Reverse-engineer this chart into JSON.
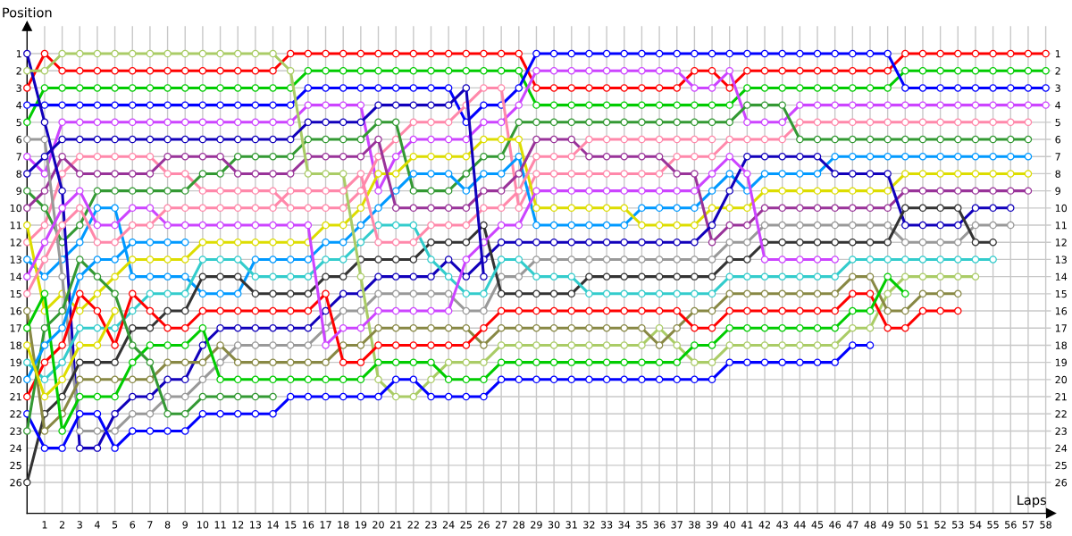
{
  "chart_data": {
    "type": "line",
    "xlabel": "Laps",
    "ylabel": "Position",
    "grid": true,
    "marker": "circle",
    "line_style": "solid",
    "x": [
      0,
      1,
      2,
      3,
      4,
      5,
      6,
      7,
      8,
      9,
      10,
      11,
      12,
      13,
      14,
      15,
      16,
      17,
      18,
      19,
      20,
      21,
      22,
      23,
      24,
      25,
      26,
      27,
      28,
      29,
      30,
      31,
      32,
      33,
      34,
      35,
      36,
      37,
      38,
      39,
      40,
      41,
      42,
      43,
      44,
      45,
      46,
      47,
      48,
      49,
      50,
      51,
      52,
      53,
      54,
      55,
      56,
      57,
      58
    ],
    "xlim": [
      0,
      58.3
    ],
    "xticks": [
      1,
      2,
      3,
      4,
      5,
      6,
      7,
      8,
      9,
      10,
      11,
      12,
      13,
      14,
      15,
      16,
      17,
      18,
      19,
      20,
      21,
      22,
      23,
      24,
      25,
      26,
      27,
      28,
      29,
      30,
      31,
      32,
      33,
      34,
      35,
      36,
      37,
      38,
      39,
      40,
      41,
      42,
      43,
      44,
      45,
      46,
      47,
      48,
      49,
      50,
      51,
      52,
      53,
      54,
      55,
      56,
      57,
      58
    ],
    "ylim": [
      27.8,
      -0.6
    ],
    "yticks": [
      1,
      2,
      3,
      4,
      5,
      6,
      7,
      8,
      9,
      10,
      11,
      12,
      13,
      14,
      15,
      16,
      17,
      18,
      19,
      20,
      21,
      22,
      23,
      24,
      25,
      26
    ],
    "y2lim": [
      27.8,
      -0.6
    ],
    "y2ticks": [
      1,
      2,
      3,
      4,
      5,
      6,
      7,
      8,
      9,
      10,
      11,
      12,
      13,
      14,
      15,
      16,
      17,
      18,
      19,
      20,
      21,
      22,
      23,
      24,
      25,
      26
    ],
    "series": [
      {
        "color": "#ff0000",
        "values": [
          3,
          1,
          2,
          2,
          2,
          2,
          2,
          2,
          2,
          2,
          2,
          2,
          2,
          2,
          2,
          1,
          1,
          1,
          1,
          1,
          1,
          1,
          1,
          1,
          1,
          1,
          1,
          1,
          1,
          3,
          3,
          3,
          3,
          3,
          3,
          3,
          3,
          3,
          2,
          2,
          3,
          2,
          2,
          2,
          2,
          2,
          2,
          2,
          2,
          2,
          1,
          1,
          1,
          1,
          1,
          1,
          1,
          1,
          1
        ]
      },
      {
        "color": "#00cc00",
        "values": [
          5,
          3,
          3,
          3,
          3,
          3,
          3,
          3,
          3,
          3,
          3,
          3,
          3,
          3,
          3,
          3,
          2,
          2,
          2,
          2,
          2,
          2,
          2,
          2,
          2,
          2,
          2,
          2,
          2,
          4,
          4,
          4,
          4,
          4,
          4,
          4,
          4,
          4,
          4,
          4,
          4,
          3,
          3,
          3,
          3,
          3,
          3,
          3,
          3,
          3,
          2,
          2,
          2,
          2,
          2,
          2,
          2,
          2,
          2
        ]
      },
      {
        "color": "#0000ff",
        "values": [
          4,
          4,
          4,
          4,
          4,
          4,
          4,
          4,
          4,
          4,
          4,
          4,
          4,
          4,
          4,
          4,
          3,
          3,
          3,
          3,
          3,
          3,
          3,
          3,
          3,
          5,
          4,
          4,
          3,
          1,
          1,
          1,
          1,
          1,
          1,
          1,
          1,
          1,
          1,
          1,
          1,
          1,
          1,
          1,
          1,
          1,
          1,
          1,
          1,
          1,
          3,
          3,
          3,
          3,
          3,
          3,
          3,
          3,
          3
        ]
      },
      {
        "color": "#cc44ff",
        "values": [
          7,
          8,
          5,
          5,
          5,
          5,
          5,
          5,
          5,
          5,
          5,
          5,
          5,
          5,
          5,
          5,
          4,
          4,
          4,
          4,
          9,
          7,
          6,
          6,
          6,
          6,
          5,
          5,
          4,
          2,
          2,
          2,
          2,
          2,
          2,
          2,
          2,
          2,
          3,
          3,
          2,
          5,
          5,
          5,
          4,
          4,
          4,
          4,
          4,
          4,
          4,
          4,
          4,
          4,
          4,
          4,
          4,
          4,
          4
        ]
      },
      {
        "color": "#ff88aa",
        "values": [
          12,
          11,
          8,
          7,
          7,
          7,
          7,
          7,
          8,
          8,
          9,
          9,
          9,
          9,
          9,
          10,
          10,
          10,
          10,
          9,
          7,
          6,
          5,
          5,
          5,
          4,
          3,
          3,
          10,
          8,
          8,
          8,
          8,
          8,
          8,
          8,
          8,
          7,
          7,
          7,
          6,
          6,
          6,
          6,
          5,
          5,
          5,
          5,
          5,
          5,
          5,
          5,
          5,
          5,
          5,
          5,
          5,
          5,
          null
        ]
      },
      {
        "color": "#339933",
        "values": [
          9,
          10,
          12,
          11,
          9,
          9,
          9,
          9,
          9,
          9,
          8,
          8,
          7,
          7,
          7,
          7,
          6,
          6,
          6,
          6,
          5,
          5,
          9,
          9,
          9,
          8,
          7,
          7,
          5,
          5,
          5,
          5,
          5,
          5,
          5,
          5,
          5,
          5,
          5,
          5,
          5,
          4,
          4,
          4,
          6,
          6,
          6,
          6,
          6,
          6,
          6,
          6,
          6,
          6,
          6,
          6,
          6,
          6,
          null
        ]
      },
      {
        "color": "#0099ff",
        "values": [
          13,
          14,
          13,
          12,
          10,
          10,
          14,
          14,
          14,
          14,
          15,
          15,
          15,
          13,
          13,
          13,
          13,
          12,
          12,
          11,
          10,
          9,
          8,
          8,
          8,
          9,
          8,
          8,
          7,
          11,
          11,
          11,
          11,
          11,
          11,
          10,
          10,
          10,
          10,
          9,
          8,
          9,
          8,
          8,
          8,
          8,
          7,
          7,
          7,
          7,
          7,
          7,
          7,
          7,
          7,
          7,
          7,
          7,
          null
        ]
      },
      {
        "color": "#dddd00",
        "values": [
          11,
          16,
          15,
          16,
          15,
          14,
          13,
          13,
          13,
          13,
          12,
          12,
          12,
          12,
          12,
          12,
          12,
          11,
          11,
          10,
          8,
          8,
          7,
          7,
          7,
          7,
          6,
          6,
          6,
          10,
          10,
          10,
          10,
          10,
          10,
          11,
          11,
          11,
          11,
          10,
          10,
          10,
          9,
          9,
          9,
          9,
          9,
          9,
          9,
          9,
          8,
          8,
          8,
          8,
          8,
          8,
          8,
          8,
          null
        ]
      },
      {
        "color": "#993399",
        "values": [
          10,
          9,
          7,
          8,
          8,
          8,
          8,
          8,
          7,
          7,
          7,
          7,
          8,
          8,
          8,
          8,
          7,
          7,
          7,
          7,
          6,
          10,
          10,
          10,
          10,
          10,
          9,
          9,
          8,
          6,
          6,
          6,
          7,
          7,
          7,
          7,
          7,
          8,
          8,
          12,
          11,
          11,
          10,
          10,
          10,
          10,
          10,
          10,
          10,
          10,
          9,
          9,
          9,
          9,
          9,
          9,
          9,
          9,
          null
        ]
      },
      {
        "color": "#1100bb",
        "values": [
          1,
          5,
          9,
          24,
          24,
          22,
          21,
          21,
          20,
          20,
          18,
          17,
          17,
          17,
          17,
          17,
          17,
          16,
          15,
          15,
          14,
          14,
          14,
          14,
          13,
          14,
          13,
          12,
          12,
          12,
          12,
          12,
          12,
          12,
          12,
          12,
          12,
          12,
          12,
          11,
          9,
          7,
          7,
          7,
          7,
          7,
          8,
          8,
          8,
          8,
          11,
          11,
          11,
          11,
          10,
          10,
          10,
          null,
          null
        ]
      },
      {
        "color": "#999999",
        "values": [
          6,
          6,
          14,
          23,
          23,
          23,
          22,
          22,
          21,
          21,
          20,
          19,
          18,
          18,
          18,
          18,
          18,
          17,
          16,
          16,
          15,
          15,
          15,
          15,
          15,
          16,
          16,
          14,
          14,
          13,
          13,
          13,
          13,
          13,
          13,
          13,
          13,
          13,
          13,
          13,
          12,
          12,
          11,
          11,
          11,
          11,
          11,
          11,
          11,
          11,
          12,
          12,
          12,
          12,
          11,
          11,
          11,
          null,
          null
        ]
      },
      {
        "color": "#333333",
        "values": [
          26,
          22,
          21,
          19,
          19,
          19,
          17,
          17,
          16,
          16,
          14,
          14,
          14,
          15,
          15,
          15,
          15,
          14,
          14,
          13,
          13,
          13,
          13,
          12,
          12,
          12,
          11,
          15,
          15,
          15,
          15,
          15,
          14,
          14,
          14,
          14,
          14,
          14,
          14,
          14,
          13,
          13,
          12,
          12,
          12,
          12,
          12,
          12,
          12,
          12,
          10,
          10,
          10,
          10,
          12,
          12,
          null,
          null,
          null
        ]
      },
      {
        "color": "#33cccc",
        "values": [
          19,
          20,
          19,
          17,
          17,
          17,
          16,
          15,
          15,
          15,
          13,
          13,
          13,
          14,
          14,
          14,
          14,
          13,
          13,
          12,
          11,
          11,
          11,
          13,
          14,
          15,
          15,
          13,
          13,
          14,
          14,
          14,
          15,
          15,
          15,
          15,
          15,
          15,
          15,
          15,
          14,
          14,
          14,
          14,
          14,
          14,
          14,
          13,
          13,
          13,
          13,
          13,
          13,
          13,
          13,
          13,
          null,
          null,
          null
        ]
      },
      {
        "color": "#aacc66",
        "values": [
          2,
          2,
          1,
          1,
          1,
          1,
          1,
          1,
          1,
          1,
          1,
          1,
          1,
          1,
          1,
          2,
          8,
          8,
          8,
          14,
          20,
          21,
          21,
          20,
          19,
          19,
          19,
          18,
          18,
          18,
          18,
          18,
          18,
          18,
          18,
          18,
          17,
          18,
          19,
          19,
          18,
          18,
          18,
          18,
          18,
          18,
          18,
          17,
          17,
          15,
          14,
          14,
          14,
          14,
          14,
          null,
          null,
          null,
          null
        ]
      },
      {
        "color": "#888844",
        "values": [
          16,
          23,
          22,
          20,
          20,
          20,
          20,
          20,
          19,
          19,
          19,
          18,
          19,
          19,
          19,
          19,
          19,
          19,
          18,
          18,
          17,
          17,
          17,
          17,
          17,
          17,
          18,
          17,
          17,
          17,
          17,
          17,
          17,
          17,
          17,
          17,
          18,
          17,
          16,
          16,
          15,
          15,
          15,
          15,
          15,
          15,
          15,
          14,
          14,
          16,
          16,
          15,
          15,
          15,
          null,
          null,
          null,
          null,
          null
        ]
      },
      {
        "color": "#ff0000",
        "values": [
          21,
          19,
          18,
          15,
          16,
          18,
          15,
          16,
          17,
          17,
          16,
          16,
          16,
          16,
          16,
          16,
          16,
          15,
          19,
          19,
          18,
          18,
          18,
          18,
          18,
          18,
          17,
          16,
          16,
          16,
          16,
          16,
          16,
          16,
          16,
          16,
          16,
          16,
          17,
          17,
          16,
          16,
          16,
          16,
          16,
          16,
          16,
          15,
          15,
          17,
          17,
          16,
          16,
          16,
          null,
          null,
          null,
          null,
          null
        ]
      },
      {
        "color": "#00cc00",
        "values": [
          17,
          15,
          23,
          21,
          21,
          21,
          19,
          18,
          18,
          18,
          17,
          20,
          20,
          20,
          20,
          20,
          20,
          20,
          20,
          20,
          19,
          19,
          19,
          19,
          20,
          20,
          20,
          19,
          19,
          19,
          19,
          19,
          19,
          19,
          19,
          19,
          19,
          19,
          18,
          18,
          17,
          17,
          17,
          17,
          17,
          17,
          17,
          16,
          16,
          14,
          15,
          null,
          null,
          null,
          null,
          null,
          null,
          null,
          null
        ]
      },
      {
        "color": "#0000ff",
        "values": [
          22,
          24,
          24,
          22,
          22,
          24,
          23,
          23,
          23,
          23,
          22,
          22,
          22,
          22,
          22,
          21,
          21,
          21,
          21,
          21,
          21,
          20,
          20,
          21,
          21,
          21,
          21,
          20,
          20,
          20,
          20,
          20,
          20,
          20,
          20,
          20,
          20,
          20,
          20,
          20,
          19,
          19,
          19,
          19,
          19,
          19,
          19,
          18,
          18,
          null,
          null,
          null,
          null,
          null,
          null,
          null,
          null,
          null,
          null
        ]
      },
      {
        "color": "#cc44ff",
        "values": [
          14,
          12,
          10,
          9,
          11,
          11,
          10,
          10,
          11,
          11,
          11,
          11,
          11,
          11,
          11,
          11,
          11,
          18,
          17,
          17,
          16,
          16,
          16,
          16,
          16,
          13,
          12,
          11,
          11,
          9,
          9,
          9,
          9,
          9,
          9,
          9,
          9,
          9,
          9,
          8,
          7,
          8,
          13,
          13,
          13,
          13,
          13,
          null,
          null,
          null,
          null,
          null,
          null,
          null,
          null,
          null,
          null,
          null,
          null
        ]
      },
      {
        "color": "#ff88aa",
        "values": [
          15,
          13,
          11,
          10,
          12,
          12,
          11,
          11,
          10,
          10,
          10,
          10,
          10,
          10,
          10,
          9,
          9,
          9,
          9,
          8,
          12,
          12,
          12,
          11,
          11,
          11,
          10,
          10,
          9,
          7,
          7,
          7,
          6,
          6,
          6,
          6,
          6,
          6,
          6,
          6,
          null,
          null,
          null,
          null,
          null,
          null,
          null,
          null,
          null,
          null,
          null,
          null,
          null,
          null,
          null,
          null,
          null,
          null,
          null
        ]
      },
      {
        "color": "#1100bb",
        "values": [
          8,
          7,
          6,
          6,
          6,
          6,
          6,
          6,
          6,
          6,
          6,
          6,
          6,
          6,
          6,
          6,
          5,
          5,
          5,
          5,
          4,
          4,
          4,
          4,
          4,
          3,
          14,
          null,
          null,
          null,
          null,
          null,
          null,
          null,
          null,
          null,
          null,
          null,
          null,
          null,
          null,
          null,
          null,
          null,
          null,
          null,
          null,
          null,
          null,
          null,
          null,
          null,
          null,
          null,
          null,
          null,
          null,
          null,
          null
        ]
      },
      {
        "color": "#339933",
        "values": [
          23,
          17,
          16,
          13,
          14,
          15,
          18,
          19,
          22,
          22,
          21,
          21,
          21,
          21,
          21,
          null,
          null,
          null,
          null,
          null,
          null,
          null,
          null,
          null,
          null,
          null,
          null,
          null,
          null,
          null,
          null,
          null,
          null,
          null,
          null,
          null,
          null,
          null,
          null,
          null,
          null,
          null,
          null,
          null,
          null,
          null,
          null,
          null,
          null,
          null,
          null,
          null,
          null,
          null,
          null,
          null,
          null,
          null,
          null
        ]
      },
      {
        "color": "#0099ff",
        "values": [
          20,
          18,
          17,
          14,
          13,
          13,
          12,
          12,
          12,
          12,
          null,
          null,
          null,
          null,
          null,
          null,
          null,
          null,
          null,
          null,
          null,
          null,
          null,
          null,
          null,
          null,
          null,
          null,
          null,
          null,
          null,
          null,
          null,
          null,
          null,
          null,
          null,
          null,
          null,
          null,
          null,
          null,
          null,
          null,
          null,
          null,
          null,
          null,
          null,
          null,
          null,
          null,
          null,
          null,
          null,
          null,
          null,
          null,
          null
        ]
      },
      {
        "color": "#dddd00",
        "values": [
          18,
          21,
          20,
          18,
          18,
          16,
          null,
          null,
          null,
          null,
          null,
          null,
          null,
          null,
          null,
          null,
          null,
          null,
          null,
          null,
          null,
          null,
          null,
          null,
          null,
          null,
          null,
          null,
          null,
          null,
          null,
          null,
          null,
          null,
          null,
          null,
          null,
          null,
          null,
          null,
          null,
          null,
          null,
          null,
          null,
          null,
          null,
          null,
          null,
          null,
          null,
          null,
          null,
          null,
          null,
          null,
          null,
          null,
          null
        ]
      }
    ]
  }
}
